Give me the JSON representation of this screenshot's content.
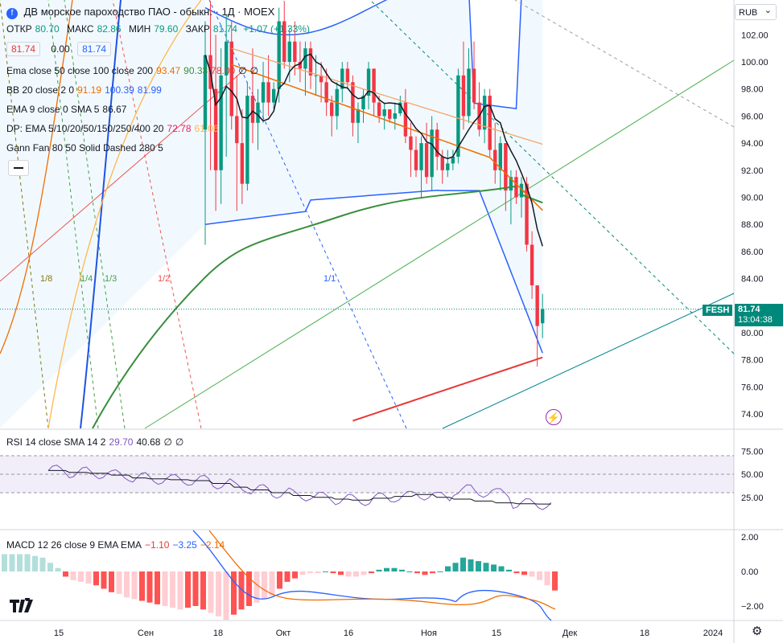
{
  "header": {
    "symbol_title": "ДВ морское пароходство ПАО - обыкн. · 1Д · MOEX",
    "ohlc": {
      "open_label": "ОТКР",
      "open": "80.70",
      "high_label": "МАКС",
      "high": "82.86",
      "low_label": "МИН",
      "low": "79.60",
      "close_label": "ЗАКР",
      "close": "81.74",
      "change": "+1.07 (+1.33%)"
    },
    "bid": "81.74",
    "spread": "0.00",
    "ask": "81.74",
    "currency": "RUB"
  },
  "indicators": [
    {
      "name": "Ema close 50 close 100 close 200",
      "values": [
        "93.47",
        "90.33",
        "78.00",
        "∅",
        "∅"
      ],
      "colors": [
        "#ef6c00",
        "#388e3c",
        "#e53935",
        "#131722",
        "#131722"
      ]
    },
    {
      "name": "BB 20 close 2 0",
      "values": [
        "91.19",
        "100.39",
        "81.99"
      ],
      "colors": [
        "#ef6c00",
        "#2962ff",
        "#2962ff"
      ]
    },
    {
      "name": "EMA 9 close 0 SMA 5",
      "values": [
        "86.67"
      ],
      "colors": [
        "#131722"
      ]
    },
    {
      "name": "DP: EMA 5/10/20/50/150/250/400 20",
      "values": [
        "72.78",
        "61.06"
      ],
      "colors": [
        "#e91e63",
        "#ffb74d"
      ]
    },
    {
      "name": "Gann Fan 80 50 Solid Dashed 280 5",
      "values": [],
      "colors": []
    }
  ],
  "rsi_legend": {
    "name": "RSI 14 close SMA 14 2",
    "values": [
      "29.70",
      "40.68",
      "∅",
      "∅"
    ],
    "colors": [
      "#7e57c2",
      "#131722",
      "#131722",
      "#131722"
    ]
  },
  "macd_legend": {
    "name": "MACD 12 26 close 9 EMA EMA",
    "values": [
      "−1.10",
      "−3.25",
      "−2.14"
    ],
    "colors": [
      "#e53935",
      "#2962ff",
      "#ef6c00"
    ]
  },
  "last_price": {
    "symbol": "FESH",
    "price": "81.74",
    "countdown": "13:04:38"
  },
  "chart_data": {
    "type": "candlestick",
    "price_axis": {
      "ticks": [
        102,
        100,
        98,
        96,
        94,
        92,
        90,
        88,
        86,
        84,
        80,
        78,
        76,
        74
      ],
      "labels": [
        "102.00",
        "100.00",
        "98.00",
        "96.00",
        "94.00",
        "92.00",
        "90.00",
        "88.00",
        "86.00",
        "84.00",
        "80.00",
        "78.00",
        "76.00",
        "74.00"
      ]
    },
    "rsi_axis": {
      "ticks": [
        75,
        50,
        25
      ],
      "labels": [
        "75.00",
        "50.00",
        "25.00"
      ]
    },
    "macd_axis": {
      "ticks": [
        2,
        0,
        -2
      ],
      "labels": [
        "2.00",
        "0.00",
        "−2.00"
      ]
    },
    "time_axis": {
      "labels": [
        "15",
        "Сен",
        "18",
        "Окт",
        "16",
        "Ноя",
        "15",
        "Дек",
        "18",
        "2024"
      ]
    },
    "gann_labels": [
      "1/8",
      "1/4",
      "1/3",
      "1/2",
      "1/1"
    ],
    "candles": [
      [
        95.0,
        103.0,
        86.5,
        100.5
      ],
      [
        100.5,
        104.5,
        92.0,
        98.0
      ],
      [
        98.0,
        102.0,
        89.0,
        92.0
      ],
      [
        92.0,
        101.0,
        89.5,
        99.0
      ],
      [
        99.0,
        103.5,
        93.0,
        101.5
      ],
      [
        101.5,
        103.0,
        95.0,
        96.0
      ],
      [
        96.0,
        99.0,
        89.0,
        94.0
      ],
      [
        94.0,
        96.5,
        89.5,
        91.0
      ],
      [
        91.0,
        98.5,
        90.5,
        97.5
      ],
      [
        97.5,
        101.0,
        94.0,
        95.5
      ],
      [
        95.5,
        98.0,
        93.5,
        97.0
      ],
      [
        97.0,
        100.0,
        95.5,
        98.5
      ],
      [
        98.5,
        100.5,
        96.0,
        97.0
      ],
      [
        97.0,
        98.5,
        96.5,
        98.0
      ],
      [
        98.0,
        104.0,
        97.0,
        103.0
      ],
      [
        103.0,
        104.5,
        99.5,
        100.0
      ],
      [
        100.0,
        102.5,
        98.5,
        101.5
      ],
      [
        101.5,
        103.0,
        99.0,
        100.0
      ],
      [
        100.0,
        101.5,
        98.5,
        99.5
      ],
      [
        99.5,
        101.5,
        97.5,
        101.0
      ],
      [
        101.0,
        101.5,
        98.0,
        99.0
      ],
      [
        99.0,
        100.5,
        97.5,
        99.0
      ],
      [
        99.0,
        100.0,
        97.0,
        98.5
      ],
      [
        98.5,
        99.5,
        96.0,
        97.0
      ],
      [
        97.0,
        97.5,
        94.5,
        96.0
      ],
      [
        96.0,
        98.5,
        95.0,
        98.0
      ],
      [
        98.0,
        100.0,
        97.0,
        99.5
      ],
      [
        99.5,
        100.0,
        98.0,
        98.5
      ],
      [
        98.5,
        99.0,
        94.5,
        95.5
      ],
      [
        95.5,
        97.0,
        94.0,
        96.5
      ],
      [
        96.5,
        98.0,
        95.5,
        97.5
      ],
      [
        97.5,
        100.0,
        96.5,
        99.5
      ],
      [
        99.5,
        99.5,
        96.0,
        97.0
      ],
      [
        97.0,
        97.5,
        95.5,
        96.0
      ],
      [
        96.0,
        97.0,
        95.0,
        96.5
      ],
      [
        96.5,
        96.5,
        95.5,
        95.8
      ],
      [
        95.8,
        97.0,
        95.0,
        96.2
      ],
      [
        96.2,
        97.5,
        96.0,
        97.0
      ],
      [
        97.0,
        98.0,
        94.0,
        94.5
      ],
      [
        94.5,
        95.5,
        91.5,
        93.5
      ],
      [
        93.5,
        94.5,
        91.5,
        92.0
      ],
      [
        92.0,
        94.5,
        90.0,
        94.0
      ],
      [
        94.0,
        95.5,
        91.0,
        91.5
      ],
      [
        91.5,
        96.0,
        90.5,
        95.0
      ],
      [
        95.0,
        95.5,
        92.0,
        93.0
      ],
      [
        93.0,
        93.5,
        91.0,
        92.0
      ],
      [
        92.0,
        93.5,
        91.5,
        92.5
      ],
      [
        92.5,
        93.5,
        92.0,
        93.0
      ],
      [
        93.0,
        99.5,
        92.5,
        99.0
      ],
      [
        99.0,
        101.5,
        95.0,
        96.0
      ],
      [
        96.0,
        101.0,
        95.5,
        99.5
      ],
      [
        99.5,
        101.5,
        96.5,
        97.0
      ],
      [
        97.0,
        98.5,
        94.5,
        95.0
      ],
      [
        95.0,
        98.0,
        94.0,
        97.5
      ],
      [
        97.5,
        98.0,
        93.0,
        93.5
      ],
      [
        93.5,
        95.5,
        91.0,
        92.0
      ],
      [
        92.0,
        94.5,
        90.5,
        94.0
      ],
      [
        94.0,
        94.0,
        89.0,
        90.5
      ],
      [
        90.5,
        92.0,
        88.0,
        91.5
      ],
      [
        91.5,
        92.0,
        89.5,
        90.0
      ],
      [
        90.0,
        91.5,
        88.5,
        91.0
      ],
      [
        91.0,
        91.5,
        86.0,
        86.5
      ],
      [
        86.5,
        87.5,
        82.5,
        83.5
      ],
      [
        83.5,
        83.5,
        77.5,
        80.5
      ],
      [
        80.7,
        82.86,
        79.6,
        81.74
      ]
    ],
    "rsi": [
      66,
      64,
      63,
      61,
      58,
      57,
      56,
      55,
      52,
      48,
      45,
      42,
      39,
      37,
      35,
      34,
      36,
      38,
      40,
      37,
      35,
      33,
      31,
      30,
      29.7
    ],
    "macd_hist": [
      1.0,
      1.0,
      1.0,
      1.0,
      0.9,
      0.8,
      0.5,
      0.2,
      -0.3,
      -0.5,
      -0.6,
      -0.7,
      -0.8,
      -1.0,
      -1.2,
      -1.3,
      -1.5,
      -1.6,
      -1.7,
      -1.8,
      -1.9,
      -2.0,
      -2.1,
      -2.2,
      -2.1,
      -2.0,
      -2.2,
      -2.4,
      -2.6,
      -2.8,
      -2.5,
      -2.2,
      -2.0,
      -1.8,
      -1.6,
      -1.4,
      -1.0,
      -0.6,
      -0.4,
      -0.2,
      -0.1,
      -0.1,
      0.0,
      -0.1,
      -0.2,
      -0.3,
      -0.3,
      -0.2,
      -0.1,
      0.1,
      0.2,
      0.2,
      0.1,
      0.0,
      -0.1,
      -0.2,
      -0.1,
      0.0,
      0.3,
      0.5,
      0.8,
      0.7,
      0.6,
      0.5,
      0.4,
      0.3,
      0.1,
      -0.1,
      -0.2,
      -0.3,
      -0.5,
      -0.8,
      -1.1
    ]
  }
}
